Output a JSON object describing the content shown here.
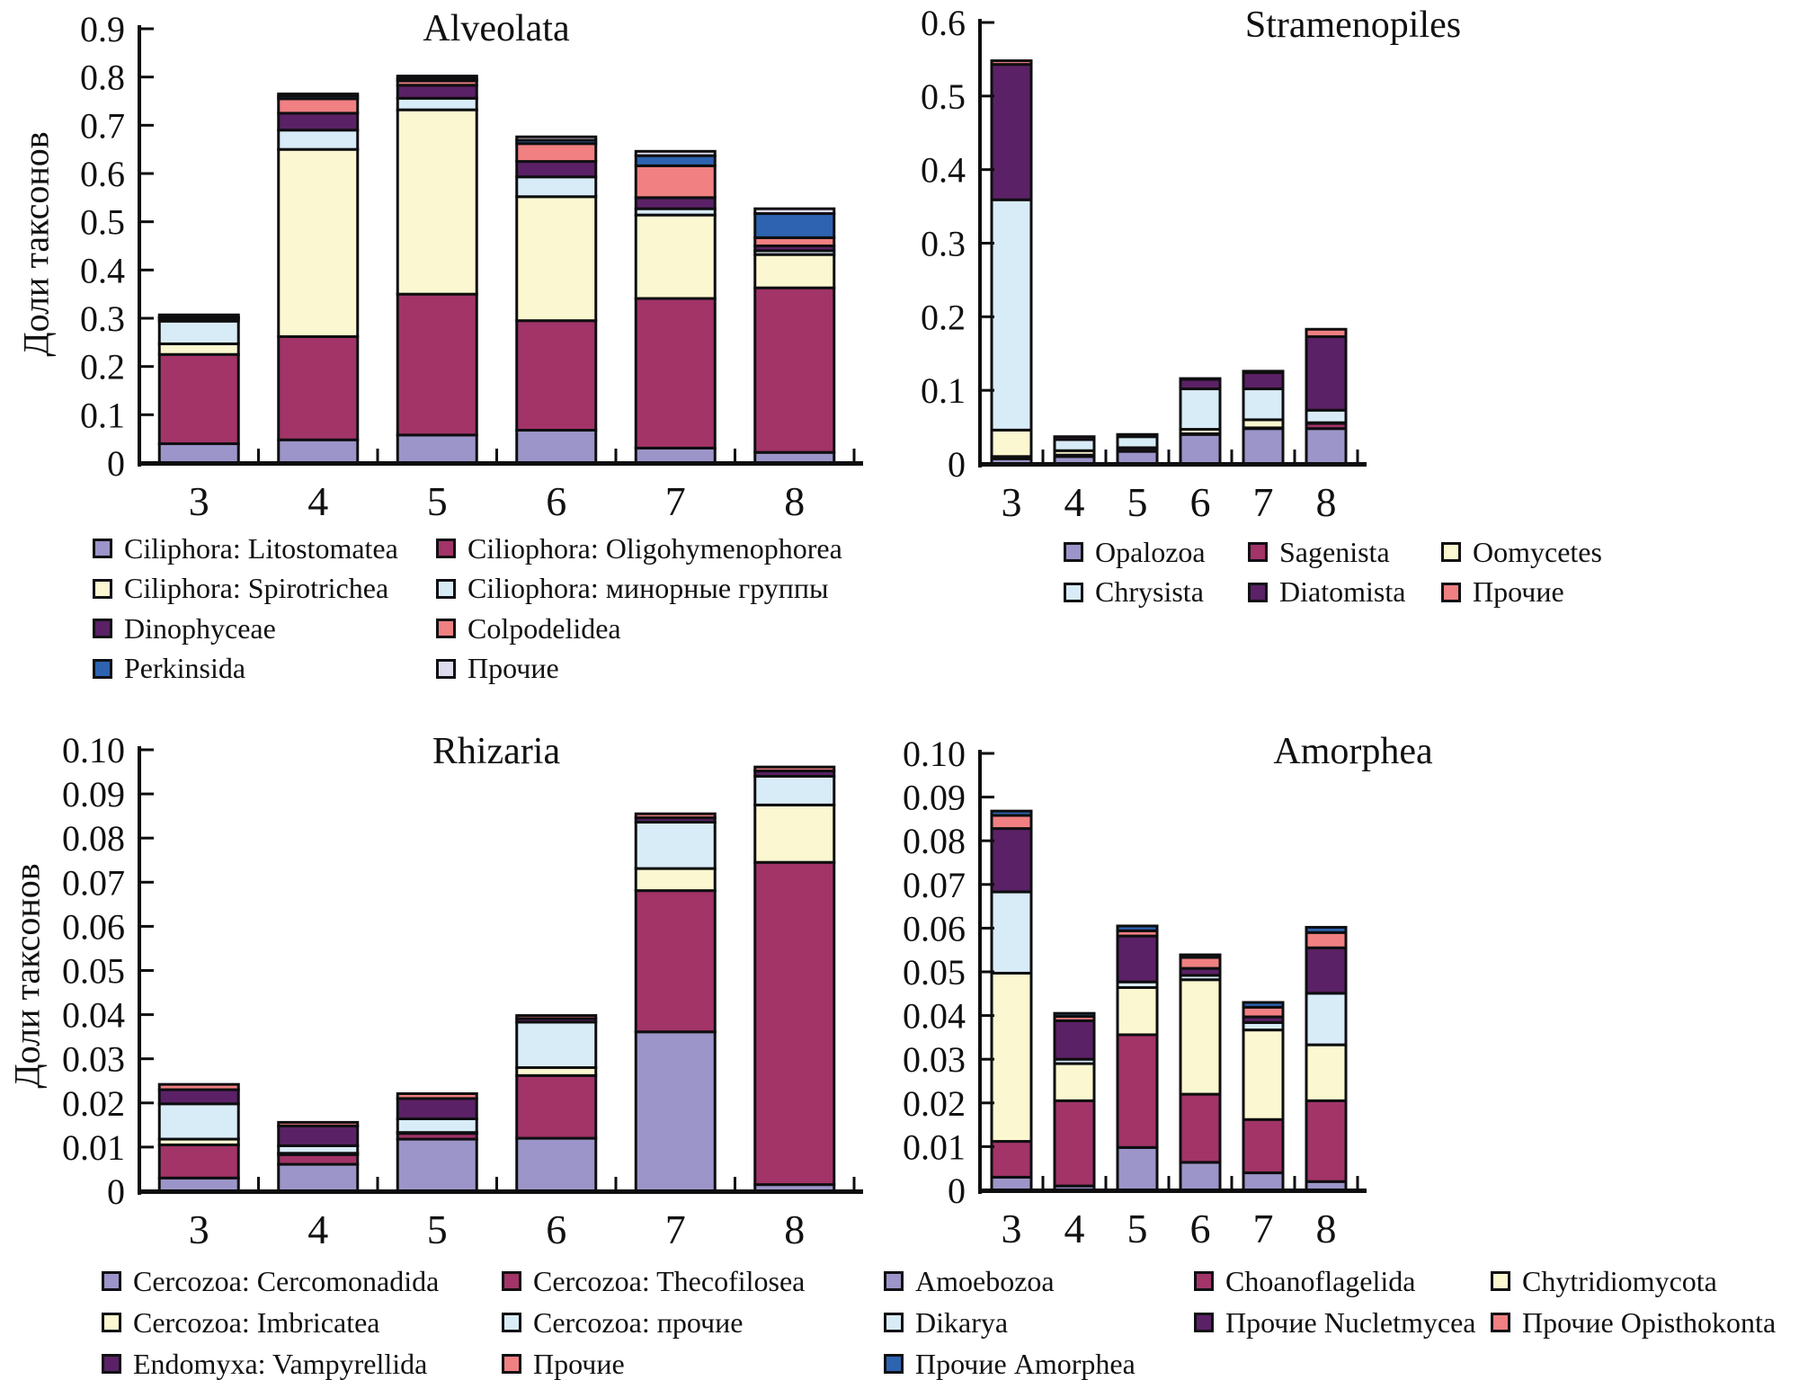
{
  "figure": {
    "ylabel": "Доли таксонов",
    "axis_color": "#0e0e10",
    "background": "#ffffff"
  },
  "chart_data": [
    {
      "type": "bar",
      "stacked": true,
      "title": "Alveolata",
      "ylabel": "Доли таксонов",
      "xlabel": "",
      "grid": false,
      "legend_position": "below",
      "legend_columns": 2,
      "categories": [
        "3",
        "4",
        "5",
        "6",
        "7",
        "8"
      ],
      "ymax": 0.9,
      "ytick_labels": [
        "0",
        "0.1",
        "0.2",
        "0.3",
        "0.4",
        "0.5",
        "0.6",
        "0.7",
        "0.8",
        "0.9"
      ],
      "totals": [
        0.307,
        0.765,
        0.802,
        0.676,
        0.646,
        0.527
      ],
      "series": [
        {
          "name": "Ciliphora: Litostomatea",
          "color": "#9b95c9",
          "values": [
            0.04,
            0.048,
            0.058,
            0.068,
            0.031,
            0.022
          ]
        },
        {
          "name": "Ciliophora: Oligohymenophorea",
          "color": "#a23468",
          "values": [
            0.185,
            0.214,
            0.292,
            0.227,
            0.31,
            0.341
          ]
        },
        {
          "name": "Ciliphora: Spirotrichea",
          "color": "#fbf7d0",
          "values": [
            0.022,
            0.388,
            0.382,
            0.257,
            0.173,
            0.069
          ]
        },
        {
          "name": "Ciliophora: минорные группы",
          "color": "#d8ecf7",
          "values": [
            0.047,
            0.04,
            0.024,
            0.041,
            0.013,
            0.008
          ]
        },
        {
          "name": "Dinophyceae",
          "color": "#5b2166",
          "values": [
            0.005,
            0.035,
            0.027,
            0.032,
            0.023,
            0.01
          ]
        },
        {
          "name": "Colpodelidea",
          "color": "#f08082",
          "values": [
            0.002,
            0.03,
            0.009,
            0.037,
            0.066,
            0.017
          ]
        },
        {
          "name": "Perkinsida",
          "color": "#2d63b0",
          "values": [
            0.002,
            0.006,
            0.005,
            0.007,
            0.021,
            0.05
          ]
        },
        {
          "name": "Прочие",
          "color": "#dedcec",
          "values": [
            0.004,
            0.004,
            0.005,
            0.007,
            0.009,
            0.01
          ]
        }
      ]
    },
    {
      "type": "bar",
      "stacked": true,
      "title": "Stramenopiles",
      "ylabel": "",
      "xlabel": "",
      "grid": false,
      "legend_position": "below",
      "legend_columns": 3,
      "categories": [
        "3",
        "4",
        "5",
        "6",
        "7",
        "8"
      ],
      "ymax": 0.6,
      "ytick_labels": [
        "0",
        "0.1",
        "0.2",
        "0.3",
        "0.4",
        "0.5",
        "0.6"
      ],
      "totals": [
        0.548,
        0.037,
        0.04,
        0.116,
        0.126,
        0.183
      ],
      "series": [
        {
          "name": "Opalozoa",
          "color": "#9b95c9",
          "values": [
            0.007,
            0.01,
            0.017,
            0.04,
            0.048,
            0.048
          ]
        },
        {
          "name": "Sagenista",
          "color": "#a23468",
          "values": [
            0.003,
            0.002,
            0.004,
            0.001,
            0.001,
            0.007
          ]
        },
        {
          "name": "Oomycetes",
          "color": "#fbf7d0",
          "values": [
            0.036,
            0.006,
            0.001,
            0.006,
            0.011,
            0.001
          ]
        },
        {
          "name": "Chrysista",
          "color": "#d8ecf7",
          "values": [
            0.313,
            0.015,
            0.015,
            0.055,
            0.042,
            0.017
          ]
        },
        {
          "name": "Diatomista",
          "color": "#5b2166",
          "values": [
            0.184,
            0.004,
            0.002,
            0.013,
            0.022,
            0.1
          ]
        },
        {
          "name": "Прочие",
          "color": "#f08082",
          "values": [
            0.005,
            0.0,
            0.001,
            0.001,
            0.002,
            0.01
          ]
        }
      ]
    },
    {
      "type": "bar",
      "stacked": true,
      "title": "Rhizaria",
      "ylabel": "Доли таксонов",
      "xlabel": "",
      "grid": false,
      "legend_position": "below",
      "legend_columns": 2,
      "categories": [
        "3",
        "4",
        "5",
        "6",
        "7",
        "8"
      ],
      "ymax": 0.1,
      "ytick_labels": [
        "0",
        "0.01",
        "0.02",
        "0.03",
        "0.04",
        "0.05",
        "0.06",
        "0.07",
        "0.08",
        "0.09",
        "0.10"
      ],
      "totals": [
        0.0242,
        0.0156,
        0.0221,
        0.0398,
        0.0855,
        0.0961
      ],
      "series": [
        {
          "name": "Cercozoa: Cercomonadida",
          "color": "#9b95c9",
          "values": [
            0.003,
            0.0061,
            0.0118,
            0.012,
            0.0361,
            0.0015
          ]
        },
        {
          "name": "Cercozoa: Thecofilosea",
          "color": "#a23468",
          "values": [
            0.0075,
            0.0022,
            0.0013,
            0.0142,
            0.032,
            0.073
          ]
        },
        {
          "name": "Cercozoa: Imbricatea",
          "color": "#fbf7d0",
          "values": [
            0.0013,
            0.0003,
            0.0002,
            0.0018,
            0.005,
            0.013
          ]
        },
        {
          "name": "Cercozoa: прочие",
          "color": "#d8ecf7",
          "values": [
            0.008,
            0.0017,
            0.0031,
            0.0103,
            0.0105,
            0.0065
          ]
        },
        {
          "name": "Endomyxa: Vampyrellida",
          "color": "#5b2166",
          "values": [
            0.0032,
            0.0045,
            0.0046,
            0.0008,
            0.001,
            0.0012
          ]
        },
        {
          "name": "Прочие",
          "color": "#f08082",
          "values": [
            0.0012,
            0.0008,
            0.0011,
            0.0007,
            0.0009,
            0.0009
          ]
        }
      ]
    },
    {
      "type": "bar",
      "stacked": true,
      "title": "Amorphea",
      "ylabel": "",
      "xlabel": "",
      "grid": false,
      "legend_position": "below",
      "legend_columns": 3,
      "categories": [
        "3",
        "4",
        "5",
        "6",
        "7",
        "8"
      ],
      "ymax": 0.1,
      "ytick_labels": [
        "0",
        "0.01",
        "0.02",
        "0.03",
        "0.04",
        "0.05",
        "0.06",
        "0.07",
        "0.08",
        "0.09",
        "0.10"
      ],
      "totals": [
        0.0868,
        0.0405,
        0.0605,
        0.0539,
        0.043,
        0.0602
      ],
      "series": [
        {
          "name": "Amoebozoa",
          "color": "#9b95c9",
          "values": [
            0.003,
            0.001,
            0.0098,
            0.0064,
            0.004,
            0.002
          ]
        },
        {
          "name": "Choanoflagelida",
          "color": "#a23468",
          "values": [
            0.0082,
            0.0195,
            0.0258,
            0.0156,
            0.0122,
            0.0185
          ]
        },
        {
          "name": "Chytridiomycota",
          "color": "#fbf7d0",
          "values": [
            0.0385,
            0.0085,
            0.0108,
            0.0262,
            0.0205,
            0.0128
          ]
        },
        {
          "name": "Dikarya",
          "color": "#d8ecf7",
          "values": [
            0.0186,
            0.001,
            0.0013,
            0.001,
            0.0017,
            0.0118
          ]
        },
        {
          "name": "Прочие Nucletmycea",
          "color": "#5b2166",
          "values": [
            0.0145,
            0.0088,
            0.0105,
            0.0016,
            0.0013,
            0.0104
          ]
        },
        {
          "name": "Прочие Opisthokonta",
          "color": "#f08082",
          "values": [
            0.003,
            0.001,
            0.0012,
            0.0025,
            0.0022,
            0.0035
          ]
        },
        {
          "name": "Прочие Amorphea",
          "color": "#2d63b0",
          "values": [
            0.001,
            0.0007,
            0.0011,
            0.0006,
            0.0011,
            0.0012
          ]
        }
      ]
    }
  ]
}
